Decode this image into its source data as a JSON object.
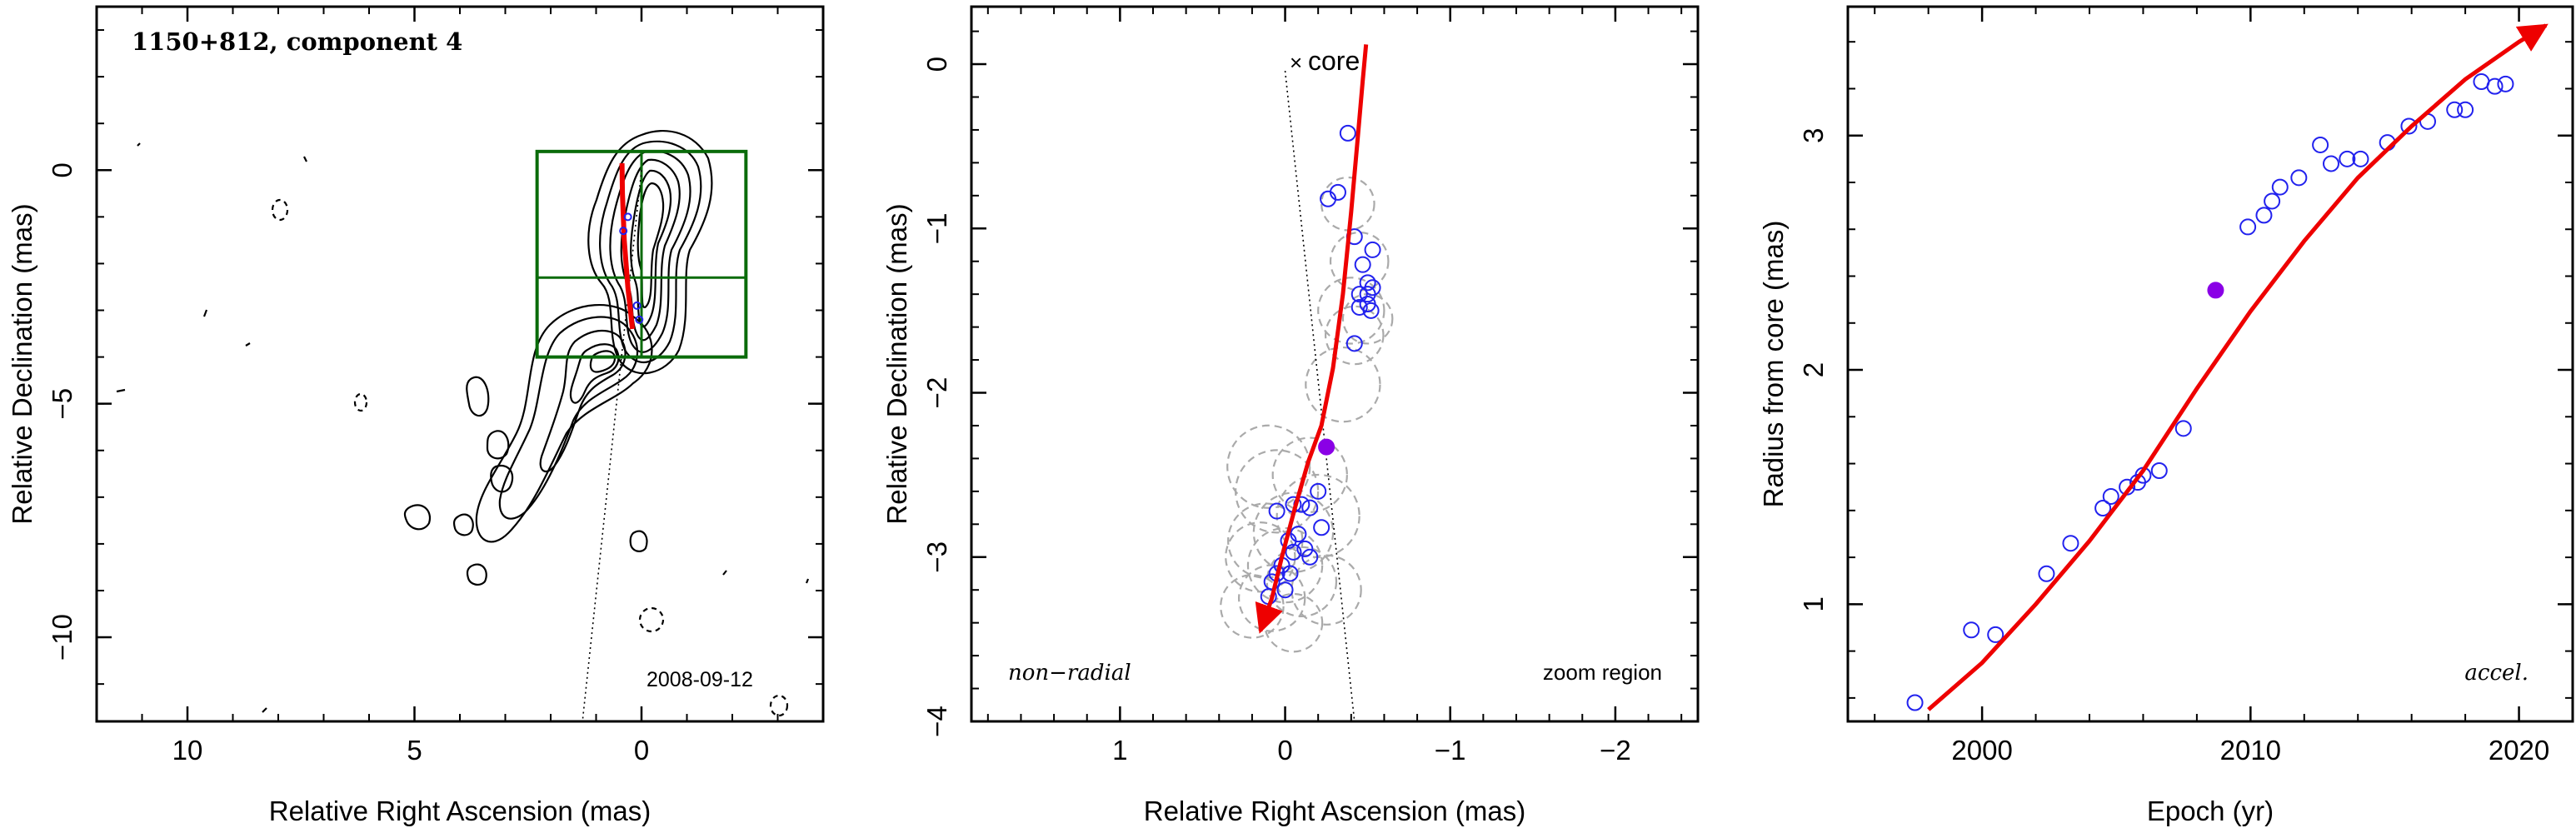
{
  "colors": {
    "curve": "#ee0000",
    "points": "#2222ee",
    "highlight": "#8a00e6",
    "box": "#0a6b0a",
    "circles": "#aaaaaa",
    "contour": "#000000"
  },
  "chart_data": [
    {
      "type": "contour",
      "title": "1150+812, component 4",
      "xlabel": "Relative Right Ascension (mas)",
      "ylabel": "Relative Declination (mas)",
      "xlim": [
        12,
        -4
      ],
      "ylim": [
        -11.8,
        3.5
      ],
      "x_ticks": [
        10,
        5,
        0
      ],
      "y_ticks": [
        0,
        -5,
        -10
      ],
      "date_label": "2008-09-12",
      "zoom_box": {
        "x": [
          2.3,
          -2.3
        ],
        "y": [
          0.4,
          -4.0
        ],
        "divider_x": 0,
        "divider_y": -2.3
      },
      "trajectory": {
        "x": [
          0.2,
          0.3,
          0.38,
          0.42,
          0.43
        ],
        "y": [
          -3.4,
          -2.5,
          -1.5,
          -0.5,
          0.15
        ]
      },
      "points": {
        "x": [
          0.4,
          0.3,
          0.1,
          0.05
        ],
        "y": [
          -1.3,
          -1.0,
          -2.9,
          -3.2
        ]
      },
      "core_line": {
        "x": [
          0,
          1.3
        ],
        "y": [
          0,
          -12
        ]
      }
    },
    {
      "type": "scatter",
      "xlabel": "Relative Right Ascension (mas)",
      "ylabel": "Relative Declination (mas)",
      "xlim": [
        1.9,
        -2.5
      ],
      "ylim": [
        -4.0,
        0.35
      ],
      "x_ticks": [
        1,
        0,
        -1,
        -2
      ],
      "y_ticks": [
        0,
        -1,
        -2,
        -3,
        -4
      ],
      "core_label": "core",
      "left_label": "non−radial",
      "right_label": "zoom region",
      "trajectory": {
        "x": [
          0.15,
          0.08,
          0.02,
          -0.06,
          -0.14,
          -0.22,
          -0.29,
          -0.35,
          -0.4,
          -0.44,
          -0.47,
          -0.49
        ],
        "y": [
          -3.45,
          -3.25,
          -3.0,
          -2.7,
          -2.42,
          -2.2,
          -1.85,
          -1.4,
          -0.9,
          -0.45,
          -0.1,
          0.12
        ]
      },
      "points": {
        "x": [
          -0.38,
          -0.32,
          -0.26,
          -0.42,
          -0.47,
          -0.5,
          -0.45,
          -0.5,
          -0.53,
          -0.45,
          -0.5,
          -0.52,
          -0.42,
          -0.53,
          -0.05,
          0.05,
          -0.1,
          -0.15,
          -0.2,
          -0.22,
          -0.08,
          -0.02,
          -0.12,
          -0.05,
          -0.15,
          0.02,
          0.05,
          -0.03,
          0.08,
          0.0,
          0.1
        ],
        "y": [
          -0.42,
          -0.78,
          -0.82,
          -1.05,
          -1.22,
          -1.33,
          -1.4,
          -1.4,
          -1.36,
          -1.48,
          -1.46,
          -1.5,
          -1.7,
          -1.13,
          -2.68,
          -2.72,
          -2.68,
          -2.7,
          -2.6,
          -2.82,
          -2.86,
          -2.9,
          -2.95,
          -2.97,
          -3.0,
          -3.05,
          -3.1,
          -3.1,
          -3.15,
          -3.2,
          -3.24
        ]
      },
      "highlight_point": {
        "x": -0.25,
        "y": -2.33
      },
      "fit_circles": {
        "x": [
          -0.38,
          -0.45,
          -0.4,
          -0.5,
          -0.42,
          -0.35,
          0.1,
          0.05,
          -0.15,
          -0.2,
          -0.05,
          0.12,
          0.15,
          0.0,
          -0.1,
          -0.25,
          0.08,
          0.2,
          -0.05
        ],
        "y": [
          -0.85,
          -1.2,
          -1.5,
          -1.55,
          -1.65,
          -1.95,
          -2.45,
          -2.6,
          -2.5,
          -2.75,
          -2.85,
          -2.9,
          -3.0,
          -3.05,
          -3.15,
          -3.2,
          -3.25,
          -3.3,
          -3.4
        ],
        "r": [
          0.32,
          0.35,
          0.4,
          0.3,
          0.35,
          0.45,
          0.5,
          0.5,
          0.45,
          0.5,
          0.48,
          0.45,
          0.42,
          0.45,
          0.42,
          0.42,
          0.4,
          0.38,
          0.35
        ]
      },
      "core_line": {
        "x": [
          0,
          -0.42
        ],
        "y": [
          0,
          -4.0
        ]
      }
    },
    {
      "type": "scatter",
      "xlabel": "Epoch (yr)",
      "ylabel": "Radius from core (mas)",
      "xlim": [
        1995,
        2022
      ],
      "ylim": [
        0.5,
        3.55
      ],
      "x_ticks": [
        2000,
        2010,
        2020
      ],
      "y_ticks": [
        1,
        2,
        3
      ],
      "corner_label": "accel.",
      "trajectory": {
        "x": [
          1998.0,
          2000,
          2002,
          2004,
          2006,
          2008,
          2010,
          2012,
          2014,
          2016,
          2018,
          2020,
          2021.0
        ],
        "y": [
          0.55,
          0.75,
          1.0,
          1.27,
          1.57,
          1.92,
          2.25,
          2.55,
          2.82,
          3.04,
          3.24,
          3.4,
          3.47
        ]
      },
      "points": {
        "x": [
          1997.5,
          1999.6,
          2000.5,
          2002.4,
          2003.3,
          2004.5,
          2004.8,
          2005.4,
          2005.8,
          2006.0,
          2006.6,
          2007.5,
          2009.9,
          2010.5,
          2010.8,
          2011.1,
          2011.8,
          2012.6,
          2013.0,
          2013.6,
          2014.1,
          2015.1,
          2015.9,
          2016.6,
          2017.6,
          2018.0,
          2018.6,
          2019.1,
          2019.5
        ],
        "y": [
          0.58,
          0.89,
          0.87,
          1.13,
          1.26,
          1.41,
          1.46,
          1.5,
          1.52,
          1.55,
          1.57,
          1.75,
          2.61,
          2.66,
          2.72,
          2.78,
          2.82,
          2.96,
          2.88,
          2.9,
          2.9,
          2.97,
          3.04,
          3.06,
          3.11,
          3.11,
          3.23,
          3.21,
          3.22
        ]
      },
      "highlight_point": {
        "x": 2008.7,
        "y": 2.34
      }
    }
  ]
}
